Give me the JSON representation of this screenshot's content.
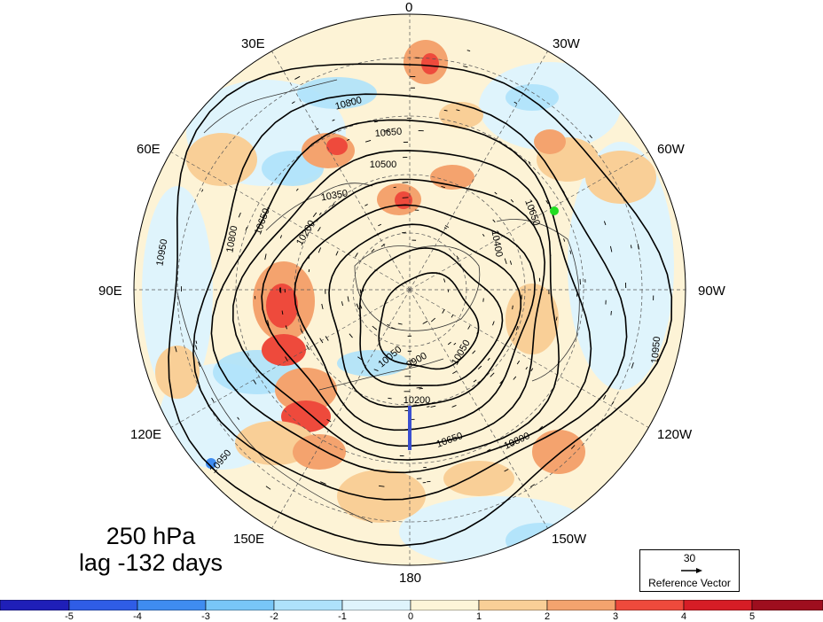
{
  "caption": {
    "line1": "250 hPa",
    "line2": "lag -132 days"
  },
  "longitude_labels": [
    "0",
    "30W",
    "60W",
    "90W",
    "120W",
    "150W",
    "180",
    "150E",
    "120E",
    "90E",
    "60E",
    "30E"
  ],
  "contour_labels": [
    "10800",
    "10650",
    "10500",
    "10350",
    "10200",
    "10050",
    "9900",
    "10950",
    "10200",
    "10400",
    "10650",
    "10050",
    "10650",
    "10800",
    "10950",
    "10650",
    "10800",
    "10950"
  ],
  "reference_vector": {
    "value": "30",
    "label": "Reference Vector"
  },
  "colorbar": {
    "ticks": [
      "-5",
      "-4",
      "-3",
      "-2",
      "-1",
      "0",
      "1",
      "2",
      "3",
      "4",
      "5"
    ],
    "colors": [
      "#1f1fb8",
      "#2f5de6",
      "#3f8cf0",
      "#78c6f7",
      "#aee2fb",
      "#dff4fc",
      "#fdf5d8",
      "#f9cf97",
      "#f4a36e",
      "#ee4a3c",
      "#d61d26",
      "#9e0e1e"
    ]
  },
  "colors": {
    "marker_point": "#22dd22",
    "contour": "#000000",
    "map_background": "#fdf3d6"
  }
}
